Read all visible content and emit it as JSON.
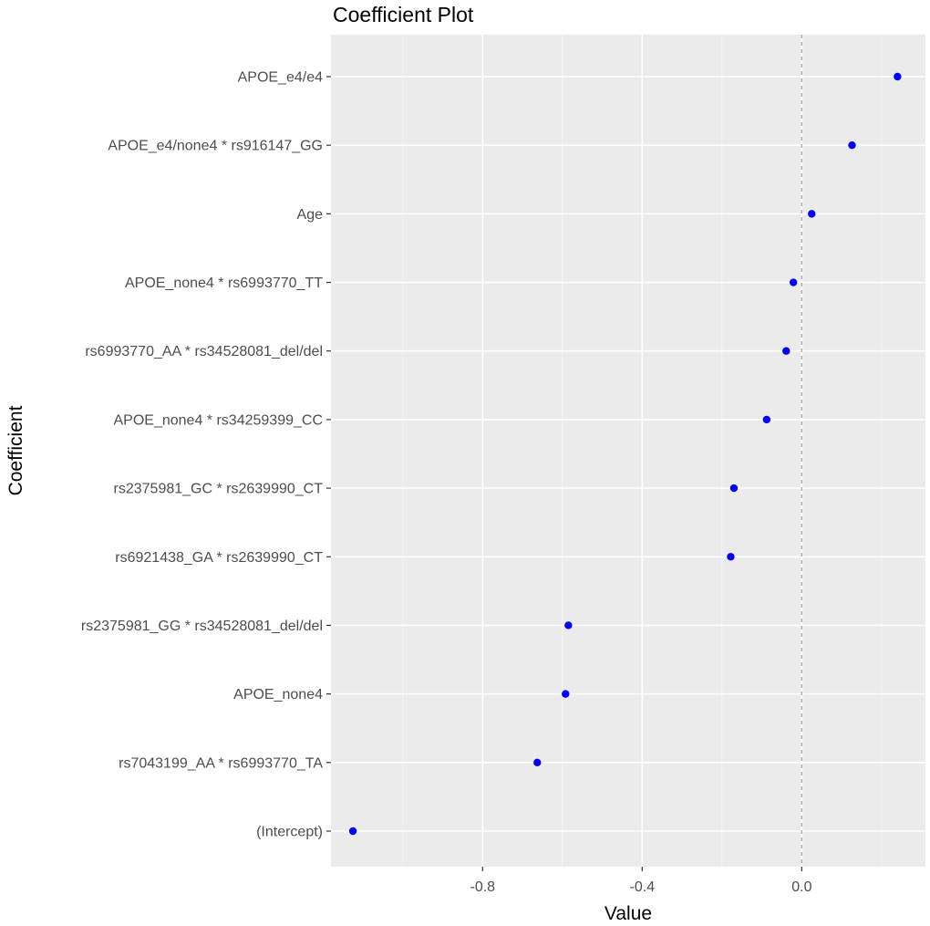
{
  "chart_data": {
    "type": "scatter",
    "title": "Coefficient Plot",
    "xlabel": "Value",
    "ylabel": "Coefficient",
    "xlim": [
      -1.18,
      0.31
    ],
    "x_ticks": [
      -0.8,
      -0.4,
      0.0
    ],
    "x_tick_labels": [
      "-0.8",
      "-0.4",
      "0.0"
    ],
    "reference_line": 0.0,
    "grid": true,
    "point_color": "#0000ff",
    "panel_background": "#ebebeb",
    "categories": [
      "APOE_e4/e4",
      "APOE_e4/none4 * rs916147_GG",
      "Age",
      "APOE_none4 * rs6993770_TT",
      "rs6993770_AA * rs34528081_del/del",
      "APOE_none4 * rs34259399_CC",
      "rs2375981_GC * rs2639990_CT",
      "rs6921438_GA * rs2639990_CT",
      "rs2375981_GG * rs34528081_del/del",
      "APOE_none4",
      "rs7043199_AA * rs6993770_TA",
      "(Intercept)"
    ],
    "values": [
      0.24,
      0.126,
      0.025,
      -0.021,
      -0.039,
      -0.088,
      -0.17,
      -0.178,
      -0.585,
      -0.592,
      -0.663,
      -1.125
    ]
  }
}
